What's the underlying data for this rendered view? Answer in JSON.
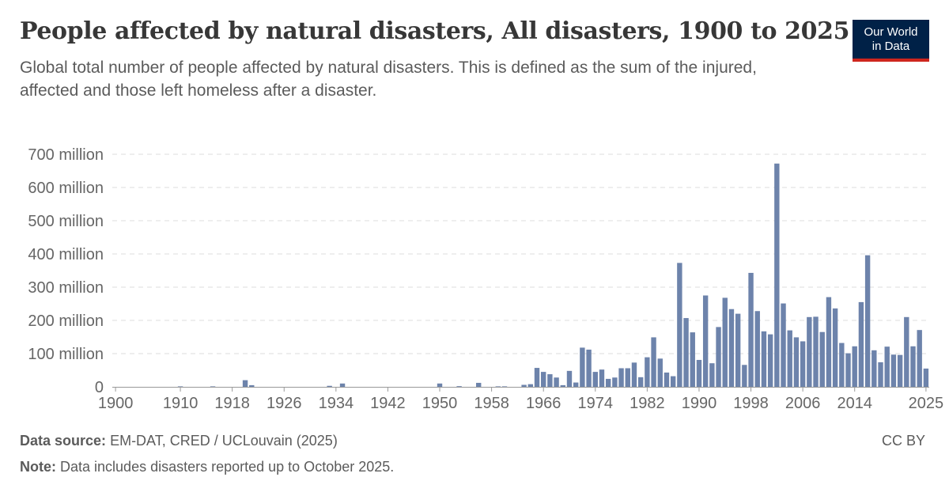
{
  "header": {
    "title": "People affected by natural disasters, All disasters, 1900 to 2025",
    "subtitle": "Global total number of people affected by natural disasters. This is defined as the sum of the injured, affected and those left homeless after a disaster."
  },
  "logo": {
    "line1": "Our World",
    "line2": "in Data",
    "bg_color": "#002147",
    "accent_color": "#ce261e"
  },
  "footer": {
    "source_label": "Data source:",
    "source_text": "EM-DAT, CRED / UCLouvain (2025)",
    "note_label": "Note:",
    "note_text": "Data includes disasters reported up to October 2025.",
    "license": "CC BY"
  },
  "chart_data": {
    "type": "bar",
    "bar_color": "#6d83ab",
    "grid": "horizontal-dashed",
    "legend": "none",
    "ylim": [
      0,
      700000000
    ],
    "y_ticks": [
      {
        "value": 0,
        "label": "0"
      },
      {
        "value": 100000000,
        "label": "100 million"
      },
      {
        "value": 200000000,
        "label": "200 million"
      },
      {
        "value": 300000000,
        "label": "300 million"
      },
      {
        "value": 400000000,
        "label": "400 million"
      },
      {
        "value": 500000000,
        "label": "500 million"
      },
      {
        "value": 600000000,
        "label": "600 million"
      },
      {
        "value": 700000000,
        "label": "700 million"
      }
    ],
    "x_ticks": [
      1900,
      1910,
      1918,
      1926,
      1934,
      1942,
      1950,
      1958,
      1966,
      1974,
      1982,
      1990,
      1998,
      2006,
      2014,
      2025
    ],
    "x_start": 1900,
    "x_end": 2025,
    "values_millions": [
      0,
      0,
      0,
      0,
      0,
      0,
      0,
      0,
      0,
      0,
      0.5,
      0,
      0,
      0,
      0,
      1,
      0,
      0,
      0,
      0,
      20,
      5,
      0,
      0,
      0,
      0,
      0,
      0,
      0,
      0,
      0,
      0,
      0,
      3,
      0,
      10,
      0,
      0,
      0,
      0,
      0,
      0,
      0,
      0,
      0,
      0,
      0,
      0,
      0,
      0,
      10,
      0,
      0,
      2,
      0,
      0,
      12,
      0,
      0,
      1,
      1,
      0,
      0,
      6,
      8,
      57,
      45,
      38,
      28,
      5,
      48,
      13,
      118,
      112,
      45,
      52,
      24,
      28,
      56,
      56,
      73,
      29,
      89,
      149,
      85,
      43,
      32,
      373,
      207,
      164,
      81,
      275,
      71,
      180,
      268,
      234,
      220,
      66,
      343,
      228,
      167,
      158,
      672,
      251,
      170,
      149,
      137,
      210,
      211,
      165,
      270,
      236,
      132,
      101,
      122,
      255,
      396,
      110,
      74,
      121,
      97,
      96,
      210,
      122,
      171,
      55
    ]
  }
}
